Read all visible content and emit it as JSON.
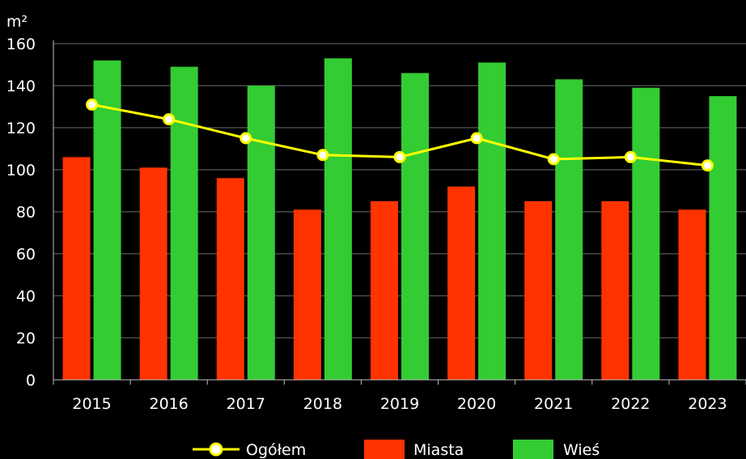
{
  "chart_data": {
    "type": "bar",
    "ylabel": "m²",
    "ylim": [
      0,
      160
    ],
    "yticks": [
      0,
      20,
      40,
      60,
      80,
      100,
      120,
      140,
      160
    ],
    "grid": true,
    "legend_position": "bottom",
    "categories": [
      "2015",
      "2016",
      "2017",
      "2018",
      "2019",
      "2020",
      "2021",
      "2022",
      "2023"
    ],
    "series": [
      {
        "name": "Ogółem",
        "kind": "line",
        "color": "#ffff00",
        "values": [
          131,
          124,
          115,
          107,
          106,
          115,
          105,
          106,
          102
        ]
      },
      {
        "name": "Miasta",
        "kind": "bar",
        "color": "#ff3300",
        "values": [
          106,
          101,
          96,
          81,
          85,
          92,
          85,
          85,
          81
        ]
      },
      {
        "name": "Wieś",
        "kind": "bar",
        "color": "#33cc33",
        "values": [
          152,
          149,
          140,
          153,
          146,
          151,
          143,
          139,
          135
        ]
      }
    ]
  }
}
